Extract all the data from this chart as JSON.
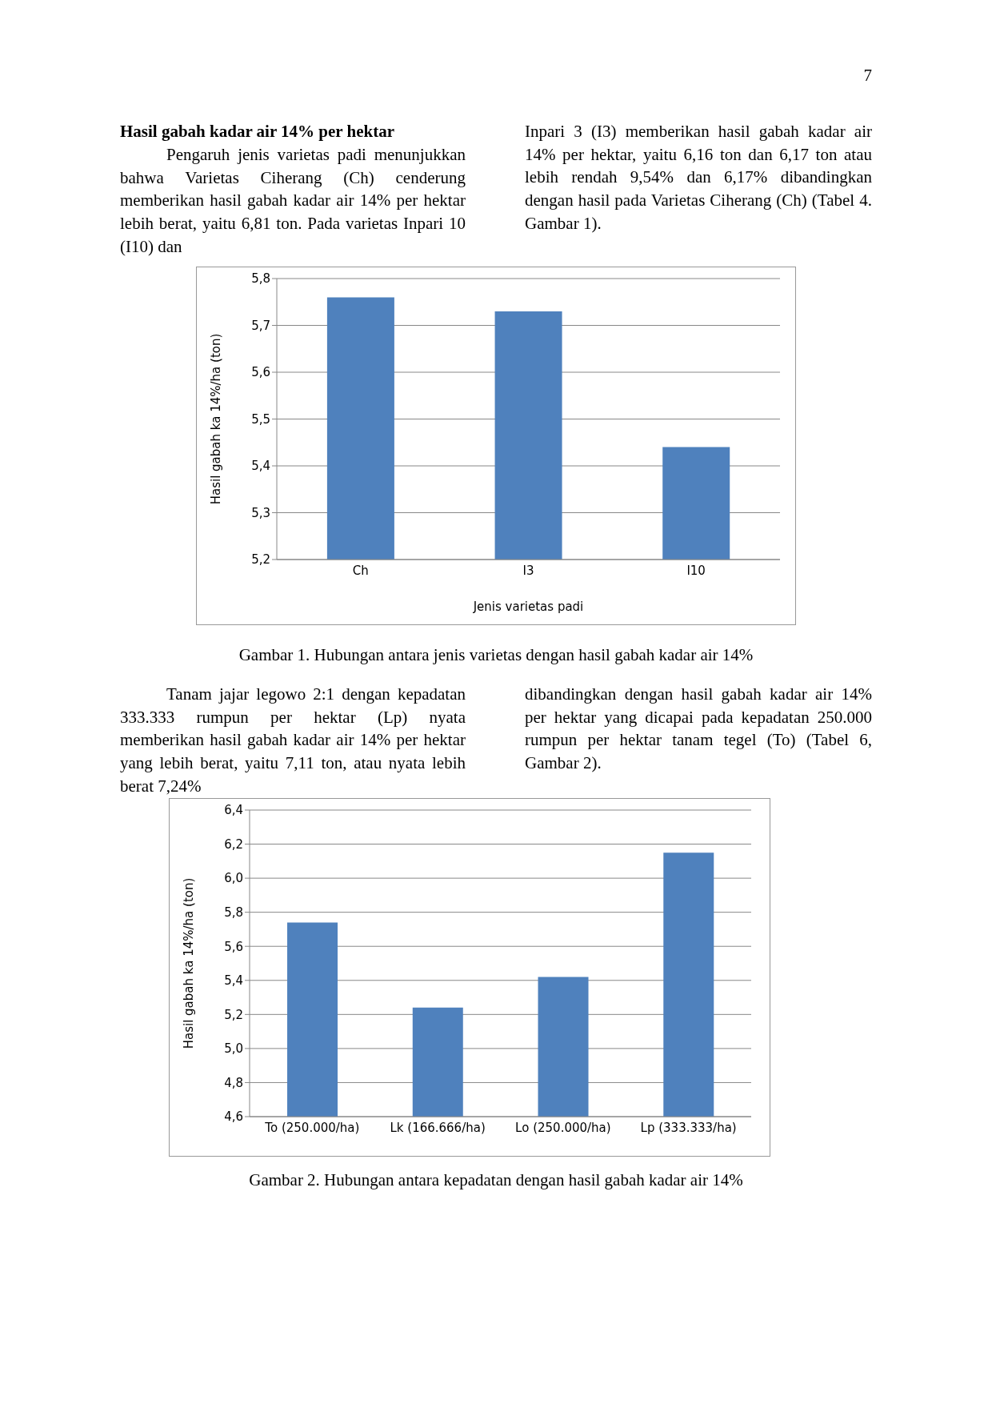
{
  "chart_data": [
    {
      "type": "bar",
      "xlabel": "Jenis varietas padi",
      "ylabel": "Hasil gabah ka 14%/ha (ton)",
      "categories": [
        "Ch",
        "I3",
        "I10"
      ],
      "values": [
        5.76,
        5.73,
        5.44
      ],
      "color": "#4f81bd",
      "ylim": [
        5.2,
        5.8
      ],
      "yticks": [
        {
          "value": 5.2,
          "label": "5,2"
        },
        {
          "value": 5.3,
          "label": "5,3"
        },
        {
          "value": 5.4,
          "label": "5,4"
        },
        {
          "value": 5.5,
          "label": "5,5"
        },
        {
          "value": 5.6,
          "label": "5,6"
        },
        {
          "value": 5.7,
          "label": "5,7"
        },
        {
          "value": 5.8,
          "label": "5,8"
        }
      ],
      "grid": "y",
      "annotations": [
        "7",
        "Hasil gabah kadar air 14% per hektar",
        "Pengaruh jenis varietas padi menunjukkan bahwa Varietas Ciherang (Ch) cenderung memberikan hasil gabah kadar air 14% per hektar lebih berat, yaitu 6,81 ton. Pada varietas Inpari 10 (I10) dan",
        "Inpari 3 (I3) memberikan hasil gabah kadar air 14% per hektar, yaitu 6,16 ton dan 6,17 ton atau lebih rendah 9,54% dan 6,17% dibandingkan dengan hasil pada Varietas Ciherang (Ch) (Tabel 4. Gambar 1).",
        "Gambar 1. Hubungan antara jenis varietas dengan hasil gabah kadar air 14%"
      ]
    },
    {
      "type": "bar",
      "ylabel": "Hasil gabah ka 14%/ha (ton)",
      "categories": [
        "To (250.000/ha)",
        "Lk (166.666/ha)",
        "Lo (250.000/ha)",
        "Lp (333.333/ha)"
      ],
      "values": [
        5.74,
        5.24,
        5.42,
        6.15
      ],
      "color": "#4f81bd",
      "ylim": [
        4.6,
        6.4
      ],
      "yticks": [
        {
          "value": 4.6,
          "label": "4,6"
        },
        {
          "value": 4.8,
          "label": "4,8"
        },
        {
          "value": 5.0,
          "label": "5,0"
        },
        {
          "value": 5.2,
          "label": "5,2"
        },
        {
          "value": 5.4,
          "label": "5,4"
        },
        {
          "value": 5.6,
          "label": "5,6"
        },
        {
          "value": 5.8,
          "label": "5,8"
        },
        {
          "value": 6.0,
          "label": "6,0"
        },
        {
          "value": 6.2,
          "label": "6,2"
        },
        {
          "value": 6.4,
          "label": "6,4"
        }
      ],
      "grid": "y",
      "annotations": [
        "Tanam jajar legowo 2:1 dengan kepadatan 333.333 rumpun per hektar (Lp) nyata memberikan hasil gabah kadar air 14% per hektar yang lebih berat, yaitu 7,11 ton, atau nyata lebih berat 7,24%",
        "dibandingkan dengan hasil gabah kadar air 14% per hektar yang dicapai pada kepadatan 250.000 rumpun per hektar tanam tegel (To) (Tabel 6, Gambar 2).",
        "Gambar 2. Hubungan antara kepadatan dengan hasil gabah kadar air 14%"
      ]
    }
  ]
}
